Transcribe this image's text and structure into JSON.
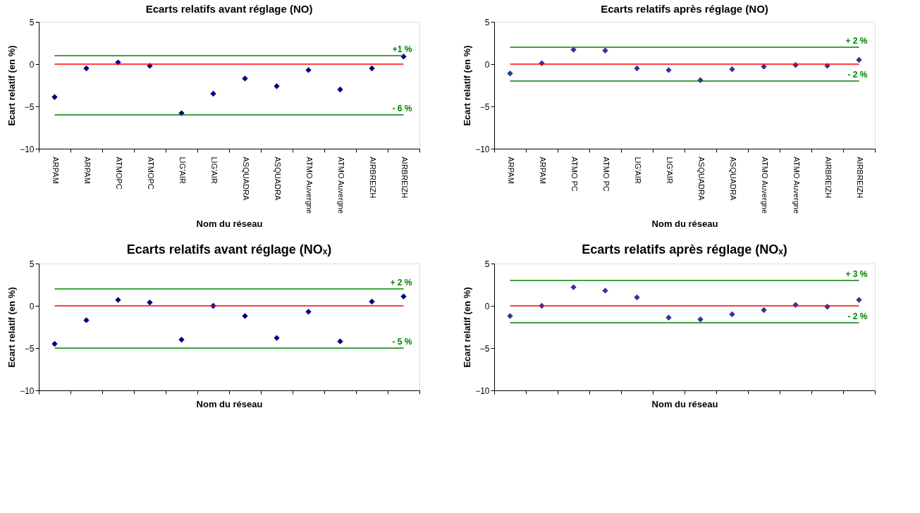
{
  "chart_data": [
    {
      "type": "scatter",
      "title": "Ecarts relatifs avant réglage (NO)",
      "xlabel": "Nom du réseau",
      "ylabel": "Ecart relatif (en %)",
      "categories": [
        "ARPAM",
        "ARPAM",
        "ATMOPC",
        "ATMOPC",
        "LIG'AIR",
        "LIG'AIR",
        "ASQUADRA",
        "ASQUADRA",
        "ATMO Auvergne",
        "ATMO Auvergne",
        "AIRBREIZH",
        "AIRBREIZH"
      ],
      "series": [
        {
          "color": "#000080",
          "values": [
            -3.9,
            -0.5,
            0.2,
            -0.2,
            -5.8,
            -3.5,
            -1.7,
            -2.6,
            -0.7,
            -3.0,
            -0.5,
            0.9
          ]
        }
      ],
      "ylim": [
        -10,
        5
      ],
      "yticks": [
        -10,
        -5,
        0,
        5
      ],
      "grid": false,
      "marker": "diamond",
      "ref_lines": [
        {
          "axis": "y",
          "value": 0,
          "color": "#ff0000"
        },
        {
          "axis": "y",
          "value": 1,
          "label": "+1 %",
          "color": "#008000"
        },
        {
          "axis": "y",
          "value": -6,
          "label": "- 6 %",
          "color": "#008000"
        }
      ]
    },
    {
      "type": "scatter",
      "title": "Ecarts relatifs après réglage (NO)",
      "xlabel": "Nom du réseau",
      "ylabel": "Ecart relatif (en %)",
      "categories": [
        "ARPAM",
        "ARPAM",
        "ATMO PC",
        "ATMO PC",
        "LIG'AIR",
        "LIG'AIR",
        "ASQUADRA",
        "ASQUADRA",
        "ATMO Auvergne",
        "ATMO Auvergne",
        "AIRBREIZH",
        "AIRBREIZH"
      ],
      "series": [
        {
          "color": "#333399",
          "values": [
            -1.1,
            0.1,
            1.7,
            1.6,
            -0.5,
            -0.7,
            -1.9,
            -0.6,
            -0.3,
            -0.1,
            -0.2,
            0.5
          ]
        }
      ],
      "ylim": [
        -10,
        5
      ],
      "yticks": [
        -10,
        -5,
        0,
        5
      ],
      "grid": false,
      "marker": "diamond",
      "ref_lines": [
        {
          "axis": "y",
          "value": 0,
          "color": "#ff0000"
        },
        {
          "axis": "y",
          "value": 2,
          "label": "+ 2 %",
          "color": "#008000"
        },
        {
          "axis": "y",
          "value": -2,
          "label": "- 2 %",
          "color": "#008000"
        }
      ]
    },
    {
      "type": "scatter",
      "title": "Ecarts relatifs avant réglage (NOₓ)",
      "xlabel": "Nom du réseau",
      "ylabel": "Ecart relatif (en %)",
      "categories": [
        null,
        null,
        null,
        null,
        null,
        null,
        null,
        null,
        null,
        null,
        null,
        null
      ],
      "series": [
        {
          "color": "#000080",
          "values": [
            -4.5,
            -1.7,
            0.7,
            0.4,
            -4.0,
            0.0,
            -1.2,
            -3.8,
            -0.7,
            -4.2,
            0.5,
            1.1
          ]
        }
      ],
      "ylim": [
        -10,
        5
      ],
      "yticks": [
        -10,
        -5,
        0,
        5
      ],
      "grid": false,
      "marker": "diamond",
      "tick_labels": "y",
      "ref_lines": [
        {
          "axis": "y",
          "value": 0,
          "color": "#ff0000"
        },
        {
          "axis": "y",
          "value": 2,
          "label": "+ 2 %",
          "color": "#008000"
        },
        {
          "axis": "y",
          "value": -5,
          "label": "- 5 %",
          "color": "#008000"
        }
      ]
    },
    {
      "type": "scatter",
      "title": "Ecarts relatifs après réglage (NOₓ)",
      "xlabel": "Nom du réseau",
      "ylabel": "Ecart relatif (en %)",
      "categories": [
        null,
        null,
        null,
        null,
        null,
        null,
        null,
        null,
        null,
        null,
        null,
        null
      ],
      "series": [
        {
          "color": "#333399",
          "values": [
            -1.2,
            0.0,
            2.2,
            1.8,
            1.0,
            -1.4,
            -1.6,
            -1.0,
            -0.5,
            0.1,
            -0.1,
            0.7
          ]
        }
      ],
      "ylim": [
        -10,
        5
      ],
      "yticks": [
        -10,
        -5,
        0,
        5
      ],
      "grid": false,
      "marker": "diamond",
      "tick_labels": "y",
      "ref_lines": [
        {
          "axis": "y",
          "value": 0,
          "color": "#ff0000"
        },
        {
          "axis": "y",
          "value": 3,
          "label": "+ 3 %",
          "color": "#008000"
        },
        {
          "axis": "y",
          "value": -2,
          "label": "- 2 %",
          "color": "#008000"
        }
      ]
    }
  ]
}
